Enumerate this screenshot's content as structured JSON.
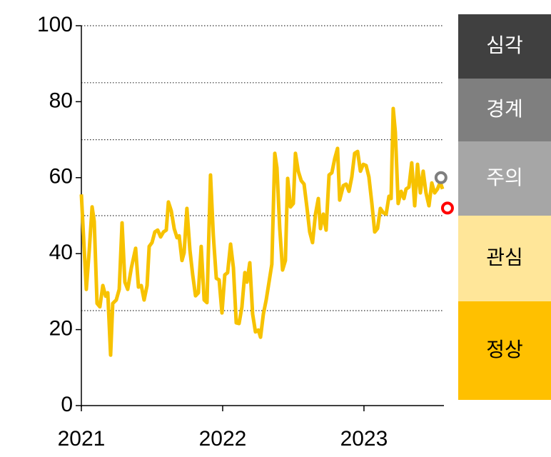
{
  "chart_data": {
    "type": "line",
    "x": [
      2021.0,
      2021.015,
      2021.035,
      2021.056,
      2021.076,
      2021.091,
      2021.111,
      2021.131,
      2021.152,
      2021.172,
      2021.187,
      2021.207,
      2021.222,
      2021.247,
      2021.268,
      2021.288,
      2021.308,
      2021.328,
      2021.354,
      2021.384,
      2021.404,
      2021.424,
      2021.444,
      2021.465,
      2021.48,
      2021.5,
      2021.52,
      2021.54,
      2021.561,
      2021.581,
      2021.601,
      2021.616,
      2021.636,
      2021.657,
      2021.677,
      2021.692,
      2021.712,
      2021.727,
      2021.747,
      2021.768,
      2021.788,
      2021.808,
      2021.828,
      2021.848,
      2021.869,
      2021.889,
      2021.914,
      2021.934,
      2021.955,
      2021.975,
      2021.995,
      2022.015,
      2022.035,
      2022.056,
      2022.076,
      2022.096,
      2022.116,
      2022.136,
      2022.157,
      2022.172,
      2022.192,
      2022.212,
      2022.232,
      2022.253,
      2022.268,
      2022.288,
      2022.308,
      2022.328,
      2022.348,
      2022.369,
      2022.384,
      2022.404,
      2022.424,
      2022.444,
      2022.46,
      2022.48,
      2022.5,
      2022.515,
      2022.535,
      2022.556,
      2022.576,
      2022.596,
      2022.616,
      2022.636,
      2022.657,
      2022.677,
      2022.692,
      2022.712,
      2022.732,
      2022.753,
      2022.773,
      2022.793,
      2022.813,
      2022.828,
      2022.854,
      2022.874,
      2022.894,
      2022.914,
      2022.934,
      2022.955,
      2022.975,
      2022.995,
      2023.015,
      2023.035,
      2023.056,
      2023.076,
      2023.096,
      2023.116,
      2023.136,
      2023.157,
      2023.177,
      2023.192,
      2023.207,
      2023.222,
      2023.242,
      2023.263,
      2023.283,
      2023.298,
      2023.318,
      2023.338,
      2023.359,
      2023.379,
      2023.399,
      2023.419,
      2023.439,
      2023.46,
      2023.48,
      2023.5,
      2023.52,
      2023.54,
      2023.556
    ],
    "series": [
      {
        "color": "#f7c200",
        "values": [
          55.6,
          44.7,
          30.6,
          41,
          52.3,
          48.5,
          26.9,
          26,
          31.6,
          28.8,
          29.7,
          13.3,
          26.9,
          27.8,
          30.6,
          48.1,
          32.5,
          30.6,
          36.3,
          41.4,
          31.2,
          31.6,
          27.8,
          31.6,
          41.9,
          42.9,
          45.7,
          46.2,
          44.4,
          45.7,
          46.2,
          53.6,
          51.3,
          46.6,
          44.2,
          44.7,
          38.2,
          40.2,
          51.9,
          41,
          34.4,
          28.9,
          29.7,
          41.9,
          27.8,
          27.1,
          60.7,
          44.7,
          33.5,
          33.1,
          24.4,
          34.4,
          35,
          42.5,
          36.3,
          21.8,
          21.6,
          25.9,
          35,
          32.5,
          37.6,
          24.1,
          19.4,
          19.9,
          18,
          24.1,
          27.8,
          32.5,
          37.2,
          66.4,
          62.6,
          46.6,
          35.7,
          38.2,
          59.8,
          52.3,
          53.2,
          66.4,
          61.7,
          59.2,
          58.3,
          52.3,
          45.7,
          42.9,
          50.4,
          54.5,
          46.6,
          50.4,
          46.2,
          60.7,
          61.3,
          65,
          67.7,
          54.1,
          57.9,
          58.3,
          56.4,
          60.2,
          66.4,
          66.9,
          61.7,
          63.5,
          63.2,
          60.2,
          53.2,
          45.7,
          46.6,
          51.9,
          50.8,
          50.4,
          55.1,
          54.5,
          78.2,
          72,
          53.2,
          56.4,
          54.5,
          57,
          57.5,
          63.9,
          52.6,
          63.5,
          56,
          61.7,
          56,
          52.6,
          58.6,
          56,
          57,
          58.8,
          57
        ]
      }
    ],
    "points": [
      {
        "x": 2023.545,
        "value": 60,
        "color": "#7f7f7f"
      },
      {
        "x": 2023.591,
        "value": 52,
        "color": "#ff0000"
      }
    ],
    "xlim": [
      2021,
      2023.566
    ],
    "xticks": [
      2021,
      2022,
      2023
    ],
    "ylim": [
      0,
      100
    ],
    "yticks": [
      0,
      20,
      40,
      60,
      80,
      100
    ],
    "thresholds": [
      25,
      50,
      70,
      85,
      100
    ],
    "zones": [
      {
        "label": "심각",
        "color": "#404040"
      },
      {
        "label": "경계",
        "color": "#7f7f7f"
      },
      {
        "label": "주의",
        "color": "#a6a6a6"
      },
      {
        "label": "관심",
        "color": "#ffe699"
      },
      {
        "label": "정상",
        "color": "#ffc000"
      }
    ]
  }
}
